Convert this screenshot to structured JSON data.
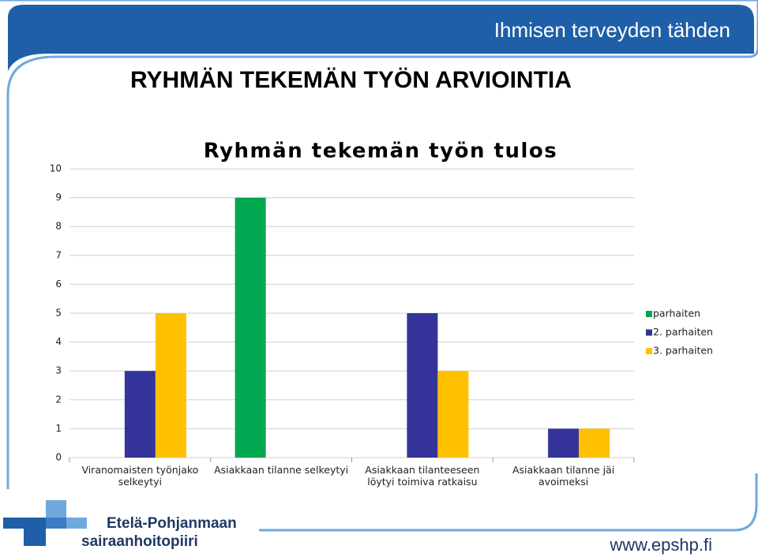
{
  "slide": {
    "tagline": "Ihmisen terveyden tähden",
    "title": "RYHMÄN TEKEMÄN TYÖN ARVIOINTIA",
    "org_line1": "Etelä-Pohjanmaan",
    "org_line2": "sairaanhoitopiiri",
    "url": "www.epshp.fi"
  },
  "chart_data": {
    "type": "bar",
    "title": "Ryhmän tekemän työn tulos",
    "categories": [
      "Viranomaisten työnjako selkeytyi",
      "Asiakkaan tilanne selkeytyi",
      "Asiakkaan tilanteeseen löytyi toimiva ratkaisu",
      "Asiakkaan tilanne jäi avoimeksi"
    ],
    "series": [
      {
        "name": "parhaiten",
        "color": "#00a650",
        "values": [
          0,
          9,
          0,
          0
        ]
      },
      {
        "name": "2. parhaiten",
        "color": "#333399",
        "values": [
          3,
          0,
          5,
          1
        ]
      },
      {
        "name": "3. parhaiten",
        "color": "#ffc000",
        "values": [
          5,
          0,
          3,
          1
        ]
      }
    ],
    "ylim": [
      0,
      10
    ],
    "yticks": [
      0,
      1,
      2,
      3,
      4,
      5,
      6,
      7,
      8,
      9,
      10
    ],
    "grid": true,
    "legend": "right"
  }
}
